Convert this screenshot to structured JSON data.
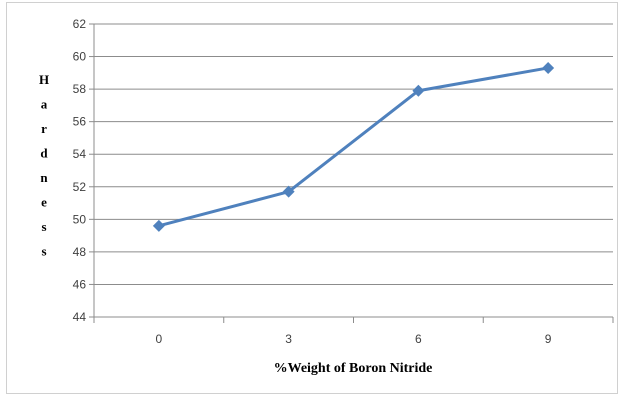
{
  "chart_data": {
    "type": "line",
    "x": [
      "0",
      "3",
      "6",
      "9"
    ],
    "series": [
      {
        "values": [
          49.6,
          51.7,
          57.9,
          59.3
        ]
      }
    ],
    "xlabel": "%Weight of Boron Nitride",
    "ylabel": "Hardness",
    "yticks": [
      "44",
      "46",
      "48",
      "50",
      "52",
      "54",
      "56",
      "58",
      "60",
      "62"
    ],
    "ylim": [
      44,
      62
    ],
    "grid": true,
    "legend": "none",
    "line_color": "#4f81bd",
    "marker": "diamond"
  }
}
